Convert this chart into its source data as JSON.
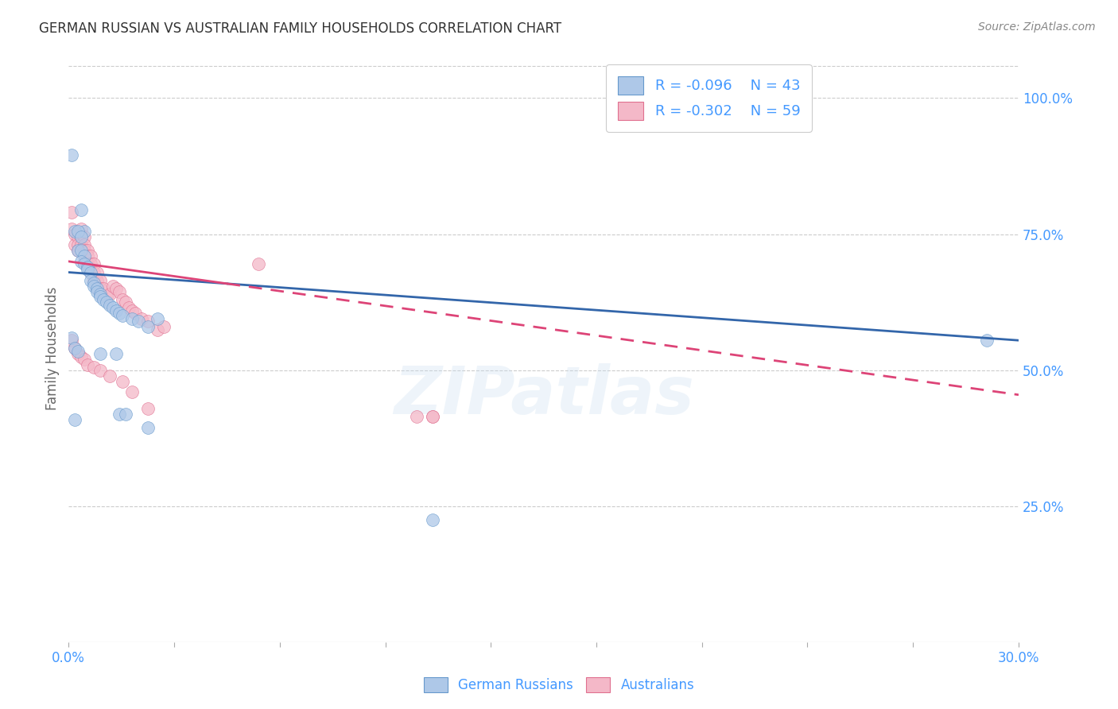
{
  "title": "GERMAN RUSSIAN VS AUSTRALIAN FAMILY HOUSEHOLDS CORRELATION CHART",
  "source": "Source: ZipAtlas.com",
  "ylabel": "Family Households",
  "watermark": "ZIPatlas",
  "blue_R": "-0.096",
  "blue_N": 43,
  "pink_R": "-0.302",
  "pink_N": 59,
  "right_yticks": [
    "100.0%",
    "75.0%",
    "50.0%",
    "25.0%"
  ],
  "right_ytick_vals": [
    1.0,
    0.75,
    0.5,
    0.25
  ],
  "xmin": 0.0,
  "xmax": 0.3,
  "ymin": 0.0,
  "ymax": 1.08,
  "blue_color": "#aec8e8",
  "pink_color": "#f4b8c8",
  "blue_edge_color": "#6699cc",
  "pink_edge_color": "#e07090",
  "blue_line_color": "#3366aa",
  "pink_line_color": "#dd4477",
  "blue_scatter": [
    [
      0.001,
      0.895
    ],
    [
      0.004,
      0.795
    ],
    [
      0.005,
      0.755
    ],
    [
      0.002,
      0.755
    ],
    [
      0.003,
      0.755
    ],
    [
      0.004,
      0.745
    ],
    [
      0.003,
      0.72
    ],
    [
      0.004,
      0.72
    ],
    [
      0.005,
      0.71
    ],
    [
      0.004,
      0.7
    ],
    [
      0.005,
      0.695
    ],
    [
      0.006,
      0.69
    ],
    [
      0.006,
      0.685
    ],
    [
      0.007,
      0.68
    ],
    [
      0.007,
      0.665
    ],
    [
      0.008,
      0.66
    ],
    [
      0.008,
      0.655
    ],
    [
      0.009,
      0.65
    ],
    [
      0.009,
      0.645
    ],
    [
      0.01,
      0.64
    ],
    [
      0.01,
      0.635
    ],
    [
      0.011,
      0.63
    ],
    [
      0.012,
      0.625
    ],
    [
      0.013,
      0.62
    ],
    [
      0.014,
      0.615
    ],
    [
      0.015,
      0.61
    ],
    [
      0.016,
      0.605
    ],
    [
      0.017,
      0.6
    ],
    [
      0.02,
      0.595
    ],
    [
      0.022,
      0.59
    ],
    [
      0.025,
      0.58
    ],
    [
      0.028,
      0.595
    ],
    [
      0.001,
      0.56
    ],
    [
      0.002,
      0.54
    ],
    [
      0.003,
      0.535
    ],
    [
      0.01,
      0.53
    ],
    [
      0.015,
      0.53
    ],
    [
      0.002,
      0.41
    ],
    [
      0.016,
      0.42
    ],
    [
      0.018,
      0.42
    ],
    [
      0.025,
      0.395
    ],
    [
      0.29,
      0.555
    ],
    [
      0.115,
      0.225
    ]
  ],
  "pink_scatter": [
    [
      0.001,
      0.79
    ],
    [
      0.001,
      0.76
    ],
    [
      0.002,
      0.75
    ],
    [
      0.002,
      0.73
    ],
    [
      0.003,
      0.745
    ],
    [
      0.003,
      0.73
    ],
    [
      0.003,
      0.72
    ],
    [
      0.004,
      0.76
    ],
    [
      0.004,
      0.745
    ],
    [
      0.004,
      0.73
    ],
    [
      0.005,
      0.745
    ],
    [
      0.005,
      0.73
    ],
    [
      0.005,
      0.72
    ],
    [
      0.005,
      0.7
    ],
    [
      0.006,
      0.72
    ],
    [
      0.006,
      0.71
    ],
    [
      0.006,
      0.695
    ],
    [
      0.007,
      0.71
    ],
    [
      0.007,
      0.695
    ],
    [
      0.007,
      0.68
    ],
    [
      0.008,
      0.695
    ],
    [
      0.008,
      0.68
    ],
    [
      0.008,
      0.665
    ],
    [
      0.009,
      0.68
    ],
    [
      0.009,
      0.665
    ],
    [
      0.009,
      0.65
    ],
    [
      0.01,
      0.665
    ],
    [
      0.01,
      0.65
    ],
    [
      0.011,
      0.65
    ],
    [
      0.012,
      0.635
    ],
    [
      0.013,
      0.64
    ],
    [
      0.014,
      0.655
    ],
    [
      0.015,
      0.65
    ],
    [
      0.016,
      0.645
    ],
    [
      0.017,
      0.63
    ],
    [
      0.018,
      0.625
    ],
    [
      0.019,
      0.615
    ],
    [
      0.02,
      0.61
    ],
    [
      0.021,
      0.605
    ],
    [
      0.023,
      0.595
    ],
    [
      0.025,
      0.59
    ],
    [
      0.028,
      0.575
    ],
    [
      0.03,
      0.58
    ],
    [
      0.001,
      0.555
    ],
    [
      0.002,
      0.54
    ],
    [
      0.003,
      0.53
    ],
    [
      0.004,
      0.525
    ],
    [
      0.005,
      0.52
    ],
    [
      0.006,
      0.51
    ],
    [
      0.008,
      0.505
    ],
    [
      0.01,
      0.5
    ],
    [
      0.013,
      0.49
    ],
    [
      0.017,
      0.48
    ],
    [
      0.02,
      0.46
    ],
    [
      0.025,
      0.43
    ],
    [
      0.06,
      0.695
    ],
    [
      0.11,
      0.415
    ],
    [
      0.115,
      0.415
    ],
    [
      0.115,
      0.415
    ]
  ],
  "blue_trend_x": [
    0.0,
    0.3
  ],
  "blue_trend_y": [
    0.68,
    0.555
  ],
  "pink_trend_x": [
    0.0,
    0.3
  ],
  "pink_trend_y": [
    0.7,
    0.455
  ],
  "background_color": "#ffffff",
  "grid_color": "#cccccc",
  "axis_label_color": "#4499ff",
  "title_color": "#333333",
  "legend_text_color": "#4499ff"
}
